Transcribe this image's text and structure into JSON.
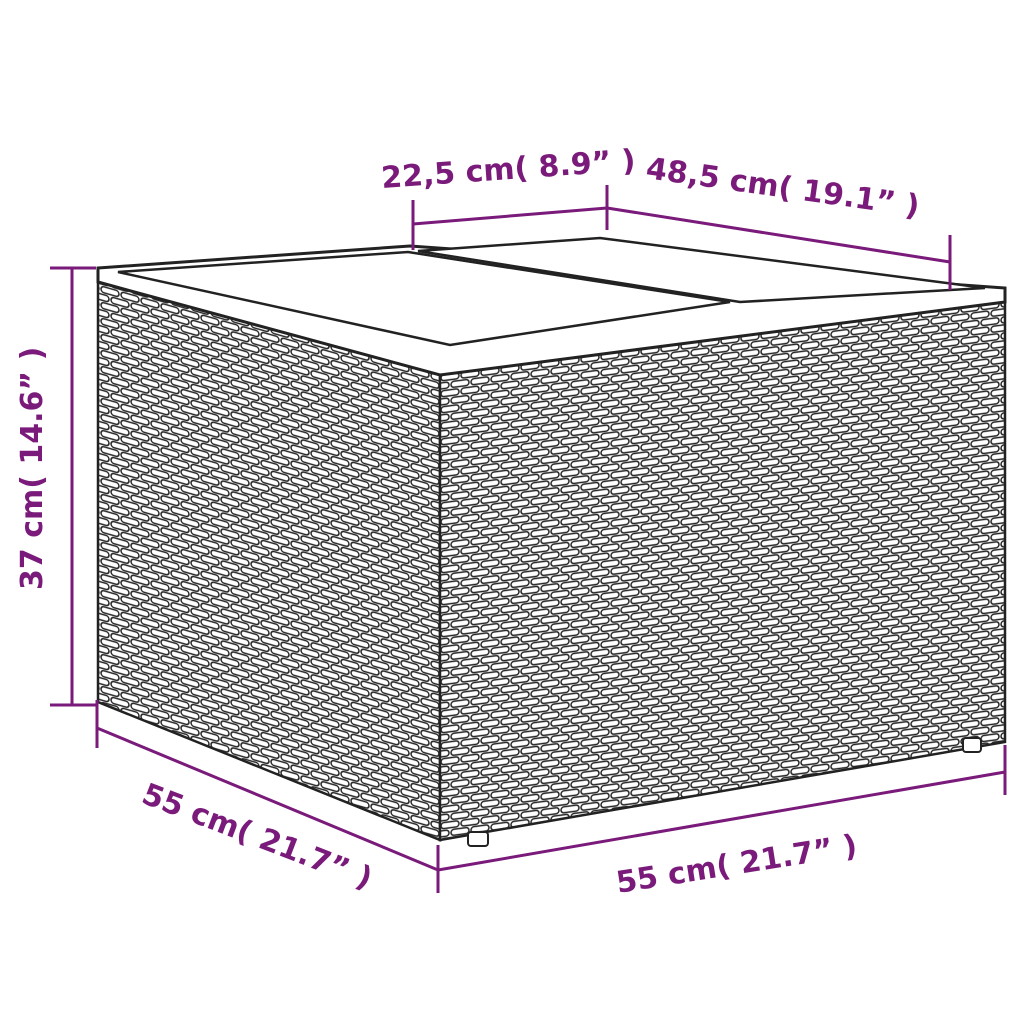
{
  "colors": {
    "dimension": "#7a1a7a",
    "outline": "#2a2a2a",
    "wicker": "#ffffff"
  },
  "dimensions": {
    "top_panel": "22,5 cm( 8.9” )",
    "top_depth": "48,5 cm( 19.1” )",
    "height": "37 cm( 14.6” )",
    "left_width": "55 cm( 21.7” )",
    "front_width": "55 cm( 21.7” )"
  }
}
